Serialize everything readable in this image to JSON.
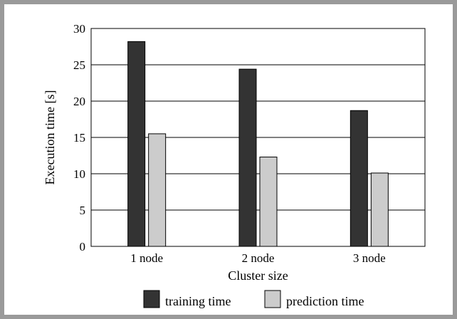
{
  "chart_data": {
    "type": "bar",
    "categories": [
      "1 node",
      "2 node",
      "3 node"
    ],
    "series": [
      {
        "name": "training time",
        "values": [
          28.2,
          24.4,
          18.7
        ],
        "color": "#333333"
      },
      {
        "name": "prediction time",
        "values": [
          15.5,
          12.3,
          10.1
        ],
        "color": "#cccccc"
      }
    ],
    "xlabel": "Cluster size",
    "ylabel": "Execution time [s]",
    "ylim": [
      0,
      30
    ],
    "yticks": [
      "0",
      "5",
      "10",
      "15",
      "20",
      "25",
      "30"
    ],
    "grid": true,
    "legend_position": "bottom"
  },
  "frame_color": "#9a9a9a"
}
